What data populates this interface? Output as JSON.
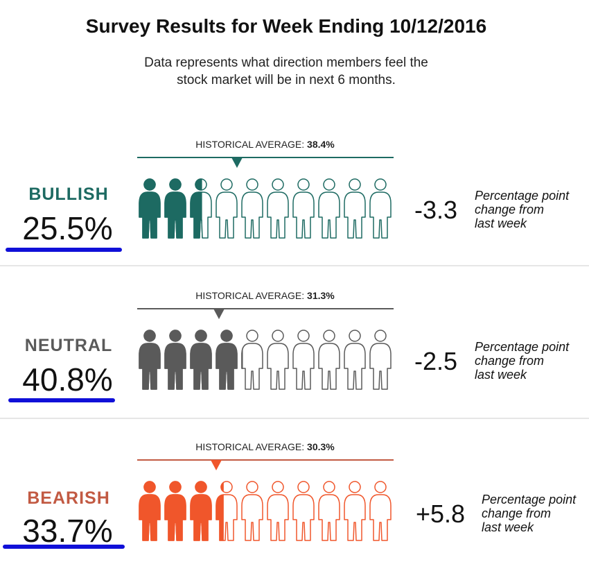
{
  "chart_data": {
    "type": "pictograph",
    "title": "Survey Results for Week Ending 10/12/2016",
    "subtitle_lines": [
      "Data represents what direction members feel the",
      "stock market will be in next 6 months."
    ],
    "icons_per_row": 10,
    "historical_label": "HISTORICAL AVERAGE:",
    "change_desc_lines": [
      "Percentage point",
      "change from",
      "last week"
    ],
    "series": [
      {
        "name": "BULLISH",
        "percent_label": "25.5%",
        "value": 25.5,
        "hist_avg_label": "38.4%",
        "hist_avg": 38.4,
        "change": "-3.3",
        "color": "#1d6a62"
      },
      {
        "name": "NEUTRAL",
        "percent_label": "40.8%",
        "value": 40.8,
        "hist_avg_label": "31.3%",
        "hist_avg": 31.3,
        "change": "-2.5",
        "color": "#5a5a5a"
      },
      {
        "name": "BEARISH",
        "percent_label": "33.7%",
        "value": 33.7,
        "hist_avg_label": "30.3%",
        "hist_avg": 30.3,
        "change": "+5.8",
        "color": "#f0562b"
      }
    ]
  }
}
